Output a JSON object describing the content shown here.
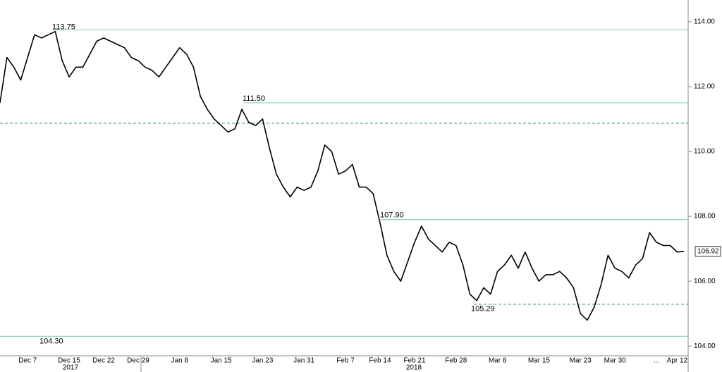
{
  "chart_data": {
    "type": "line",
    "categories": [
      null,
      null,
      null,
      null,
      "Dec 7",
      null,
      null,
      null,
      null,
      null,
      "Dec 15",
      null,
      null,
      null,
      null,
      "Dec 22",
      null,
      null,
      null,
      null,
      "Dec 29",
      null,
      null,
      null,
      null,
      null,
      "Jan 8",
      null,
      null,
      null,
      null,
      null,
      "Jan 15",
      null,
      null,
      null,
      null,
      null,
      "Jan 23",
      null,
      null,
      null,
      null,
      null,
      "Jan 31",
      null,
      null,
      null,
      null,
      null,
      "Feb 7",
      null,
      null,
      null,
      null,
      "Feb 14",
      null,
      null,
      null,
      null,
      "Feb 21",
      null,
      null,
      null,
      null,
      null,
      "Feb 28",
      null,
      null,
      null,
      null,
      null,
      "Mar 8",
      null,
      null,
      null,
      null,
      null,
      "Mar 15",
      null,
      null,
      null,
      null,
      null,
      "Mar 23",
      null,
      null,
      null,
      null,
      "Mar 30",
      null,
      null,
      null,
      null,
      null,
      "...",
      null,
      null,
      "Apr 12",
      null
    ],
    "years": [
      "2017",
      "2018"
    ],
    "series": [
      {
        "color": "#000000",
        "values": [
          111.5,
          112.9,
          112.6,
          112.2,
          112.9,
          113.6,
          113.5,
          113.6,
          113.7,
          112.8,
          112.3,
          112.6,
          112.6,
          113.0,
          113.4,
          113.5,
          113.4,
          113.3,
          113.2,
          112.9,
          112.8,
          112.6,
          112.5,
          112.3,
          112.6,
          112.9,
          113.2,
          113.0,
          112.6,
          111.7,
          111.3,
          111.0,
          110.8,
          110.6,
          110.7,
          111.3,
          110.9,
          110.8,
          111.0,
          110.1,
          109.3,
          108.9,
          108.6,
          108.9,
          108.8,
          108.9,
          109.4,
          110.2,
          110.0,
          109.3,
          109.4,
          109.6,
          108.9,
          108.9,
          108.7,
          107.8,
          106.8,
          106.3,
          106.0,
          106.6,
          107.2,
          107.7,
          107.3,
          107.1,
          106.9,
          107.2,
          107.1,
          106.5,
          105.6,
          105.4,
          105.8,
          105.6,
          106.3,
          106.5,
          106.8,
          106.4,
          106.9,
          106.4,
          106.0,
          106.2,
          106.2,
          106.3,
          106.1,
          105.8,
          105.0,
          104.8,
          105.2,
          105.9,
          106.8,
          106.4,
          106.3,
          106.1,
          106.5,
          106.7,
          107.5,
          107.2,
          107.1,
          107.1,
          106.9,
          106.92
        ]
      }
    ],
    "levels": [
      {
        "value": 113.75,
        "label": "113.75",
        "style": "solid"
      },
      {
        "value": 111.5,
        "label": "111.50",
        "style": "solid"
      },
      {
        "value": 110.87,
        "style": "dashed"
      },
      {
        "value": 107.9,
        "label": "107.90",
        "style": "solid"
      },
      {
        "value": 105.29,
        "label": "105.29",
        "style": "dashed"
      },
      {
        "value": 104.3,
        "label": "104.30",
        "style": "solid"
      }
    ],
    "level_color": "#8fd4c4",
    "dashed_color": "#3a9f88",
    "ylim": [
      103.7,
      114.67
    ],
    "yticks": [
      {
        "value": 104,
        "label": "104.00"
      },
      {
        "value": 106,
        "label": "106.00"
      },
      {
        "value": 108,
        "label": "108.00"
      },
      {
        "value": 110,
        "label": "110.00"
      },
      {
        "value": 112,
        "label": "112.00"
      },
      {
        "value": 114,
        "label": "114.00"
      }
    ],
    "grid": false
  }
}
